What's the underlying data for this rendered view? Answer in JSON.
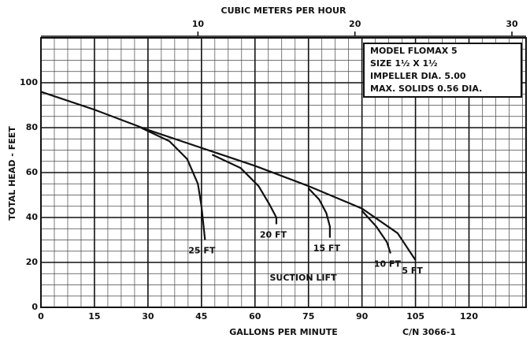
{
  "chart_data": {
    "type": "line",
    "title": "CUBIC METERS PER HOUR",
    "xlabel": "GALLONS PER MINUTE",
    "ylabel": "TOTAL HEAD - FEET",
    "annotation": "SUCTION LIFT",
    "code": "C/N 3066-1",
    "info": [
      "MODEL  FLOMAX 5",
      "SIZE  1½ X 1½",
      "IMPELLER DIA. 5.00",
      "MAX. SOLIDS 0.56 DIA."
    ],
    "xlim": [
      0,
      136
    ],
    "xticks": [
      0,
      15,
      30,
      45,
      60,
      75,
      90,
      105,
      120
    ],
    "x2lim": [
      0,
      30.9
    ],
    "x2ticks": [
      10,
      20,
      30
    ],
    "ylim": [
      0,
      120
    ],
    "yticks": [
      0,
      20,
      40,
      60,
      80,
      100
    ],
    "grid": true,
    "minor_grid": {
      "x": 3.75,
      "y": 5
    },
    "color": "#111111",
    "series": [
      {
        "name": "5 FT",
        "x": [
          0,
          15,
          30,
          45,
          60,
          75,
          90,
          100,
          105
        ],
        "values": [
          96,
          88,
          79,
          71,
          63,
          54,
          44,
          33,
          21
        ]
      },
      {
        "name": "25 FT",
        "x": [
          28,
          36,
          41,
          44,
          45,
          46
        ],
        "values": [
          80,
          74,
          66,
          55,
          45,
          30
        ]
      },
      {
        "name": "20 FT",
        "x": [
          48,
          56,
          61,
          64,
          66,
          66
        ],
        "values": [
          68,
          62,
          54,
          46,
          40,
          37
        ]
      },
      {
        "name": "15 FT",
        "x": [
          75,
          78,
          80,
          81,
          81
        ],
        "values": [
          53,
          48,
          42,
          36,
          31
        ]
      },
      {
        "name": "10 FT",
        "x": [
          90,
          94,
          97,
          98
        ],
        "values": [
          43,
          36,
          29,
          24
        ]
      }
    ]
  }
}
